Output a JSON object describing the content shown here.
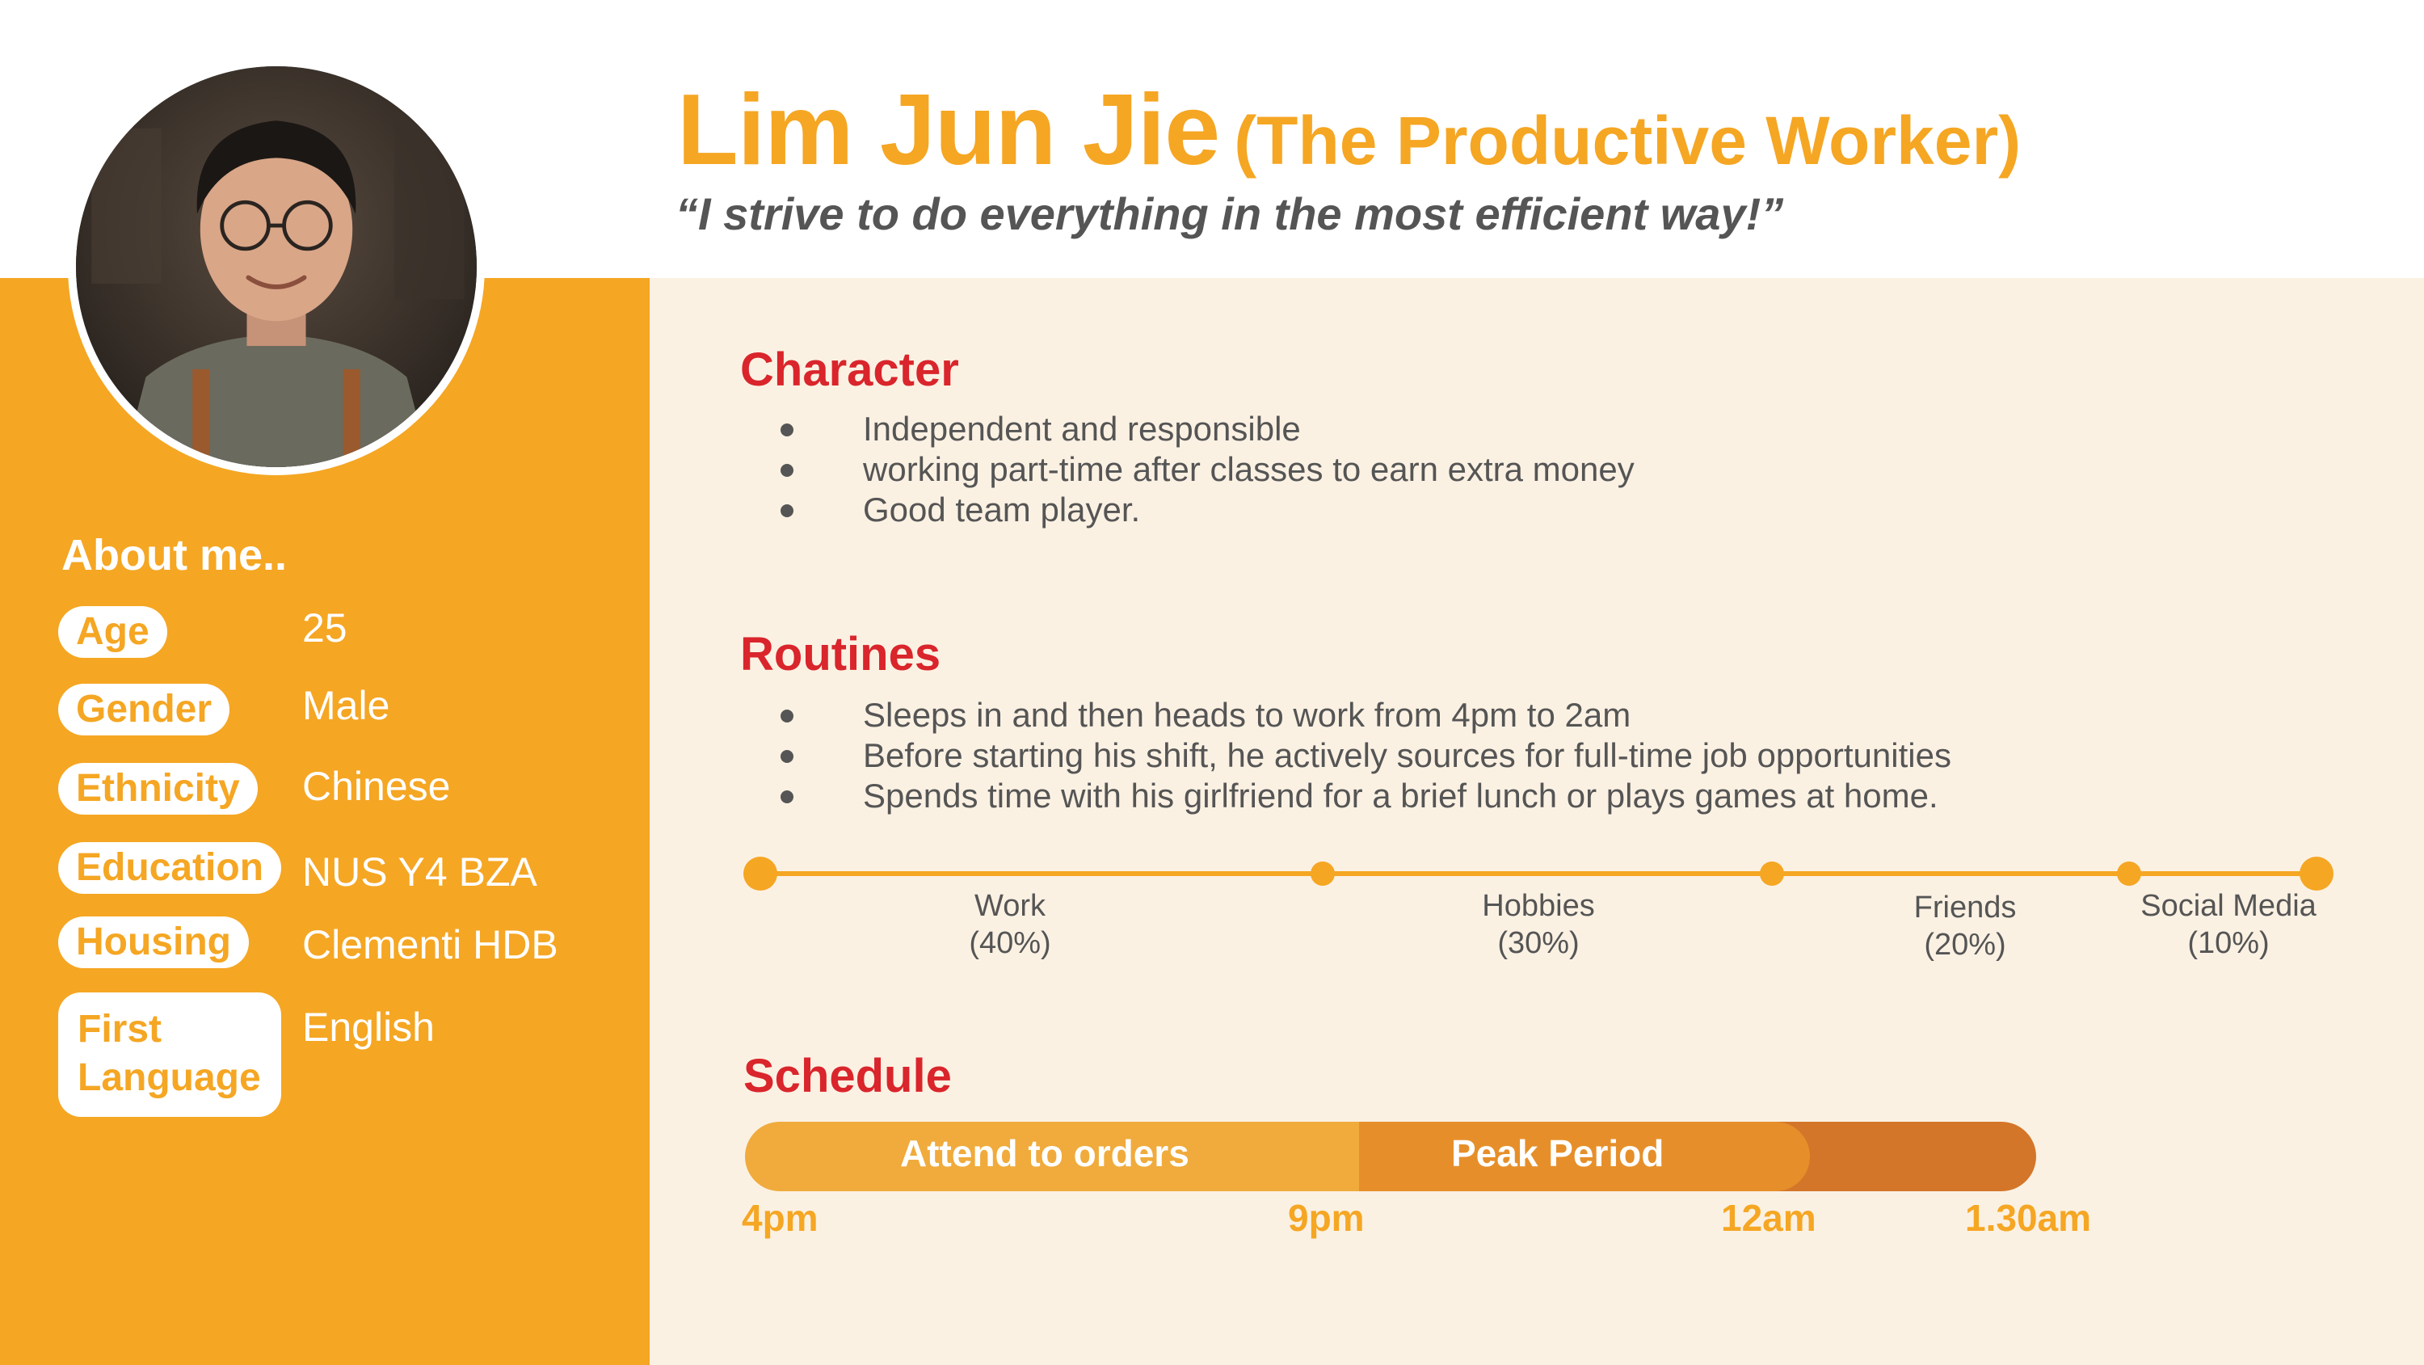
{
  "persona": {
    "name": "Lim Jun Jie",
    "role": "(The Productive Worker)",
    "quote": "“I strive to do everything in the most efficient way!”"
  },
  "about": {
    "heading": "About me..",
    "fields": [
      {
        "label": "Age",
        "value": "25"
      },
      {
        "label": "Gender",
        "value": "Male"
      },
      {
        "label": "Ethnicity",
        "value": "Chinese"
      },
      {
        "label": "Education",
        "value": "NUS Y4 BZA"
      },
      {
        "label": "Housing",
        "value": "Clementi HDB"
      },
      {
        "label": "First Language",
        "value": "English"
      }
    ]
  },
  "character": {
    "heading": "Character",
    "items": [
      "Independent and responsible",
      "working part-time after classes to earn extra money",
      "Good team player."
    ]
  },
  "routines": {
    "heading": "Routines",
    "items": [
      "Sleeps in and then heads to work from 4pm to 2am",
      "Before starting his shift, he actively sources for full-time job opportunities",
      "Spends time with his girlfriend for a brief lunch or plays games at home."
    ],
    "timeline": [
      {
        "name": "Work",
        "percent": "(40%)"
      },
      {
        "name": "Hobbies",
        "percent": "(30%)"
      },
      {
        "name": "Friends",
        "percent": "(20%)"
      },
      {
        "name": "Social Media",
        "percent": "(10%)"
      }
    ]
  },
  "schedule": {
    "heading": "Schedule",
    "segments": [
      "Attend to orders",
      "Peak Period"
    ],
    "times": [
      "4pm",
      "9pm",
      "12am",
      "1.30am"
    ],
    "colors": {
      "segment1": "#f0ab3c",
      "segment2": "#e68f2a",
      "segment3": "#d47629"
    }
  },
  "theme": {
    "accent": "#f5a623",
    "heading_red": "#d9252b",
    "panel_bg": "#fbf1e3",
    "text_gray": "#555555"
  },
  "icons": {
    "avatar": "person-photo",
    "bullet": "bullet-dot-icon"
  }
}
